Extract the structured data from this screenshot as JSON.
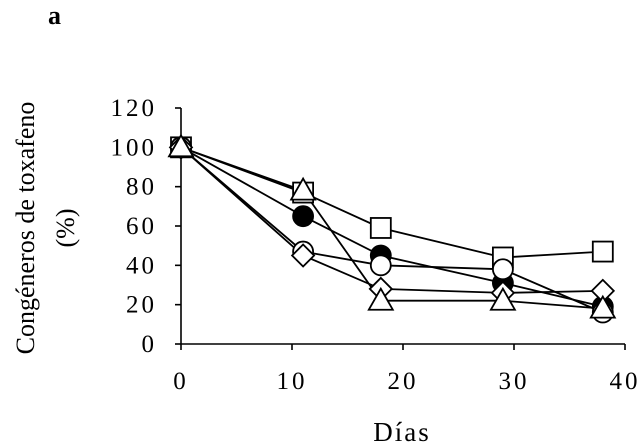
{
  "panel_label": "a",
  "chart_data": {
    "type": "line",
    "xlabel": "Días",
    "ylabel": [
      "Congéneros de toxafeno",
      "(%)"
    ],
    "xlim": [
      0,
      40
    ],
    "ylim": [
      0,
      120
    ],
    "xticks": [
      0,
      10,
      20,
      30,
      40
    ],
    "yticks": [
      0,
      20,
      40,
      60,
      80,
      100,
      120
    ],
    "grid": false,
    "legend": "none",
    "series": [
      {
        "marker": "open-square",
        "x": [
          0,
          11,
          18,
          29,
          38
        ],
        "y": [
          100,
          77,
          59,
          44,
          47
        ]
      },
      {
        "marker": "filled-circle",
        "x": [
          0,
          11,
          18,
          29,
          38
        ],
        "y": [
          100,
          65,
          45,
          31,
          19
        ]
      },
      {
        "marker": "open-circle",
        "x": [
          0,
          11,
          18,
          29,
          38
        ],
        "y": [
          100,
          47,
          40,
          38,
          16
        ]
      },
      {
        "marker": "open-diamond",
        "x": [
          0,
          11,
          18,
          29,
          38
        ],
        "y": [
          100,
          45,
          28,
          26,
          27
        ]
      },
      {
        "marker": "open-triangle",
        "x": [
          0,
          11,
          18,
          29,
          38
        ],
        "y": [
          100,
          78,
          22,
          22,
          18
        ]
      }
    ]
  }
}
